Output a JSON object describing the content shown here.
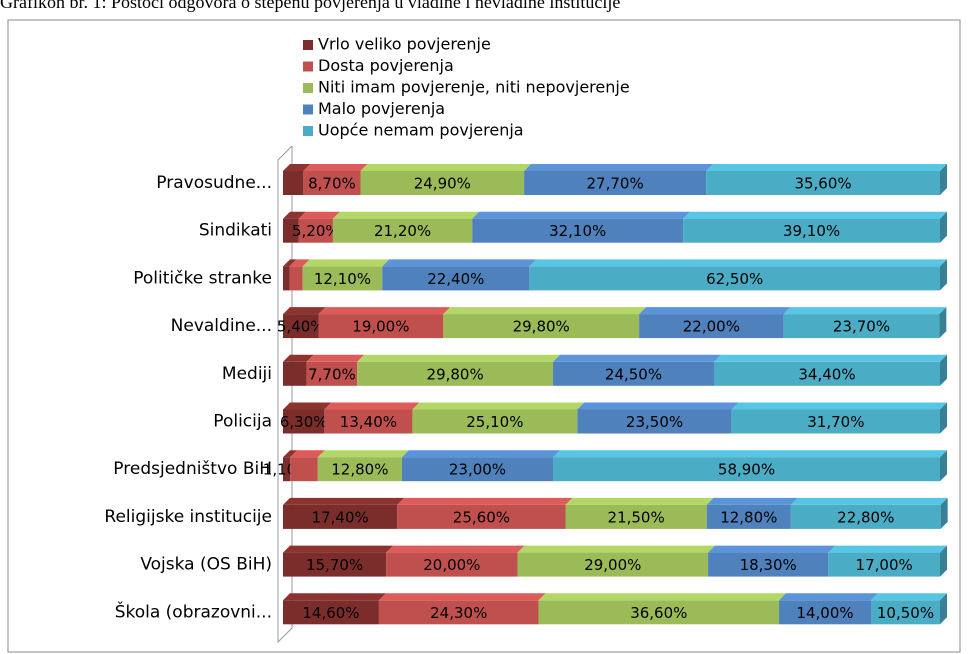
{
  "chart_data": {
    "type": "stacked-bar-horizontal",
    "title": "Grafikon br. 1: Postoci odgovora o stepenu povjerenja u vladine i nevladine institucije",
    "categories": [
      "Pravosudne...",
      "Sindikati",
      "Političke stranke",
      "Nevaldine...",
      "Mediji",
      "Policija",
      "Predsjedništvo BiH",
      "Religijske institucije",
      "Vojska (OS BiH)",
      "Škola (obrazovni..."
    ],
    "series": [
      {
        "name": "Vrlo veliko povjerenje",
        "color": "#7b2d2b",
        "values": [
          3.1,
          2.4,
          1.0,
          5.4,
          3.6,
          6.3,
          1.1,
          17.4,
          15.7,
          14.6
        ],
        "value_labels": [
          null,
          null,
          null,
          "5,40%",
          null,
          "6,30%",
          "1,10%",
          "17,40%",
          "15,70%",
          "14,60%"
        ]
      },
      {
        "name": "Dosta povjerenja",
        "color": "#c0504d",
        "values": [
          8.7,
          5.2,
          2.0,
          19.0,
          7.7,
          13.4,
          4.2,
          25.6,
          20.0,
          24.3
        ],
        "value_labels": [
          "8,70%",
          "5,20%",
          null,
          "19,00%",
          "7,70%",
          "13,40%",
          null,
          "25,60%",
          "20,00%",
          "24,30%"
        ]
      },
      {
        "name": "Niti imam povjerenje, niti nepovjerenje",
        "color": "#9bbb59",
        "values": [
          24.9,
          21.2,
          12.1,
          29.8,
          29.8,
          25.1,
          12.8,
          21.5,
          29.0,
          36.6
        ],
        "value_labels": [
          "24,90%",
          "21,20%",
          "12,10%",
          "29,80%",
          "29,80%",
          "25,10%",
          "12,80%",
          "21,50%",
          "29,00%",
          "36,60%"
        ]
      },
      {
        "name": "Malo povjerenja",
        "color": "#4f81bd",
        "values": [
          27.7,
          32.1,
          22.4,
          22.0,
          24.5,
          23.5,
          23.0,
          12.8,
          18.3,
          14.0
        ],
        "value_labels": [
          "27,70%",
          "32,10%",
          "22,40%",
          "22,00%",
          "24,50%",
          "23,50%",
          "23,00%",
          "12,80%",
          "18,30%",
          "14,00%"
        ]
      },
      {
        "name": "Uopće nemam povjerenja",
        "color": "#4bacc6",
        "values": [
          35.6,
          39.1,
          62.5,
          23.7,
          34.4,
          31.7,
          58.9,
          22.8,
          17.0,
          10.5
        ],
        "value_labels": [
          "35,60%",
          "39,10%",
          "62,50%",
          "23,70%",
          "34,40%",
          "31,70%",
          "58,90%",
          "22,80%",
          "17,00%",
          "10,50%"
        ]
      }
    ],
    "xlim": [
      0,
      100
    ]
  }
}
